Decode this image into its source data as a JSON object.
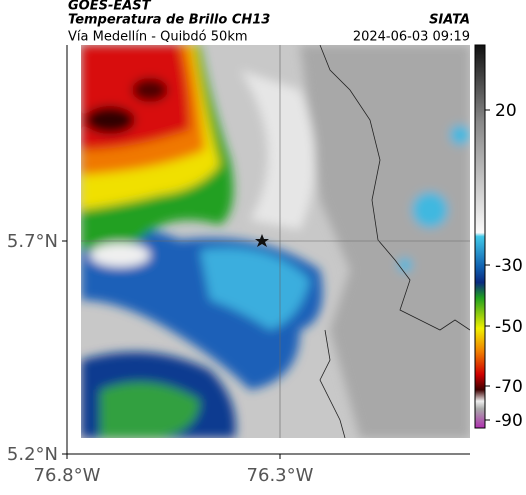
{
  "header": {
    "source": "GOES-EAST",
    "title": "Temperatura de Brillo CH13",
    "agency": "SIATA",
    "subtitle": "Vía Medellín - Quibdó 50km",
    "timestamp": "2024-06-03 09:19"
  },
  "map": {
    "lat_ticks": [
      "5.7°N",
      "5.2°N"
    ],
    "lon_ticks": [
      "76.8°W",
      "76.3°W"
    ]
  },
  "colorbar": {
    "ticks": [
      "20",
      "-30",
      "-50",
      "-70",
      "-90"
    ]
  }
}
